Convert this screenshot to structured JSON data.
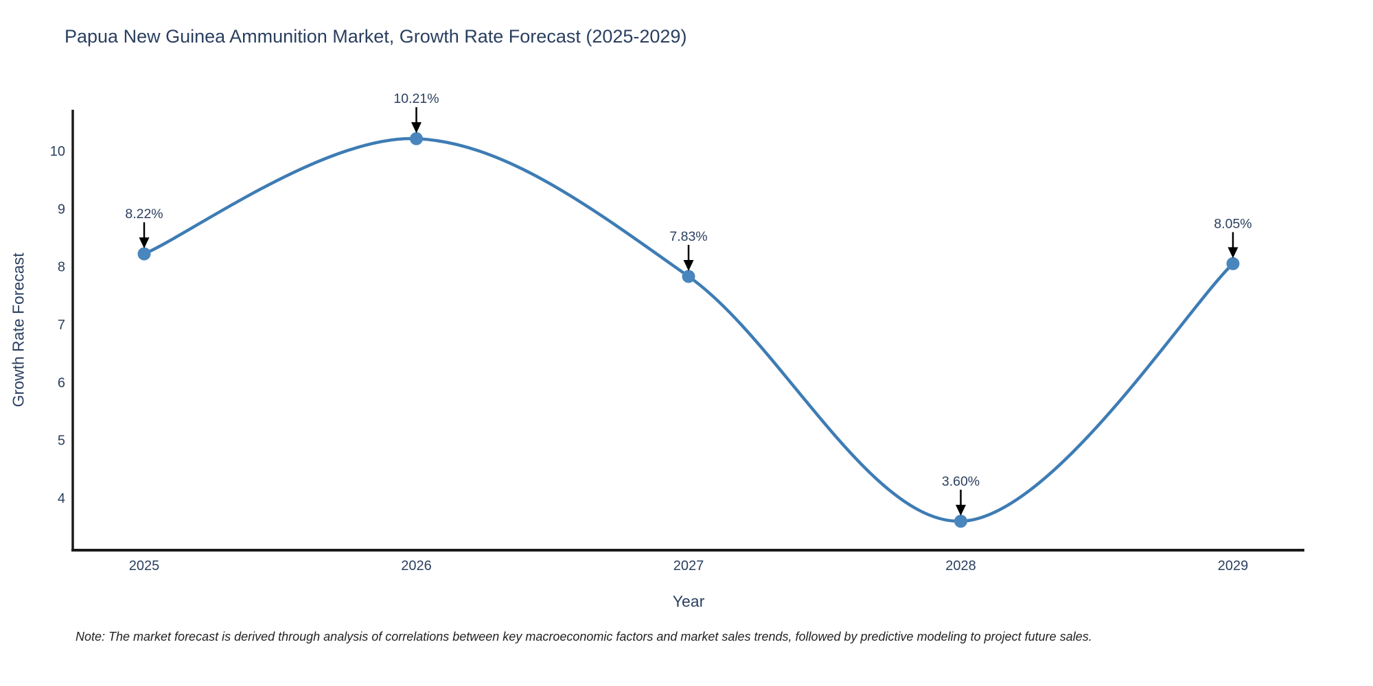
{
  "chart_data": {
    "type": "line",
    "title": "Papua New Guinea Ammunition Market, Growth Rate Forecast (2025-2029)",
    "xlabel": "Year",
    "ylabel": "Growth Rate Forecast",
    "x": [
      2025,
      2026,
      2027,
      2028,
      2029
    ],
    "values": [
      8.22,
      10.21,
      7.83,
      3.6,
      8.05
    ],
    "point_labels": [
      "8.22%",
      "10.21%",
      "7.83%",
      "3.60%",
      "8.05%"
    ],
    "line_shape": "spline",
    "grid": false,
    "legend": "none",
    "ylim": [
      3.1,
      10.71
    ],
    "yticks": [
      4,
      5,
      6,
      7,
      8,
      9,
      10
    ],
    "colors": {
      "line": "#3e7cb4",
      "marker": "#4a86be",
      "arrow": "#000000",
      "axis": "#1a1a1a",
      "tick_text": "#2a3f5f",
      "annotation_text": "#2a3f5f"
    }
  },
  "note": {
    "text": "Note: The market forecast is derived through analysis of correlations between key macroeconomic factors and market sales trends, followed by predictive modeling to project future sales."
  }
}
